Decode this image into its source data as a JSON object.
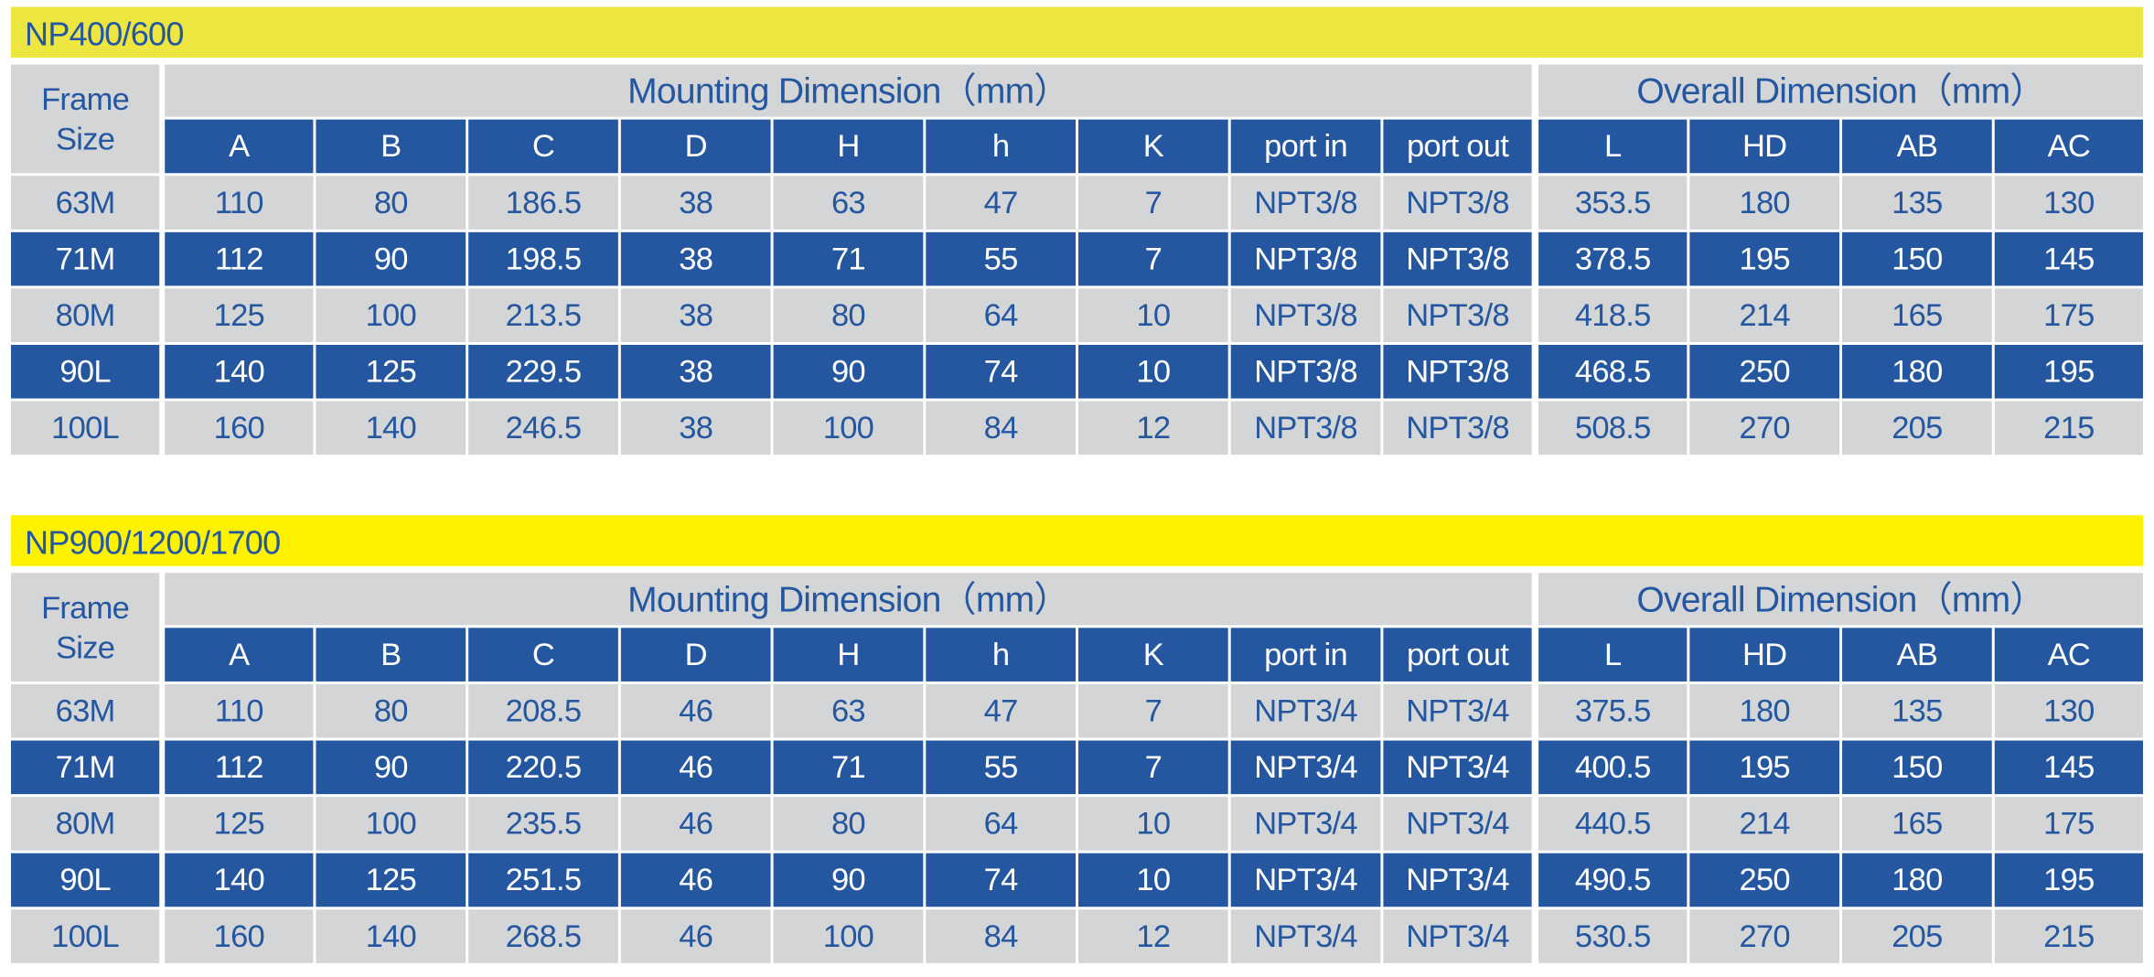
{
  "tables": [
    {
      "title": "NP400/600",
      "frame_header": "Frame Size",
      "groups": [
        "Mounting Dimension（mm）",
        "Overall Dimension（mm）"
      ],
      "columns": [
        "A",
        "B",
        "C",
        "D",
        "H",
        "h",
        "K",
        "port in",
        "port out",
        "L",
        "HD",
        "AB",
        "AC"
      ],
      "rows": [
        [
          "63M",
          110,
          80,
          186.5,
          38,
          63,
          47,
          7,
          "NPT3/8",
          "NPT3/8",
          353.5,
          180,
          135,
          130
        ],
        [
          "71M",
          112,
          90,
          198.5,
          38,
          71,
          55,
          7,
          "NPT3/8",
          "NPT3/8",
          378.5,
          195,
          150,
          145
        ],
        [
          "80M",
          125,
          100,
          213.5,
          38,
          80,
          64,
          10,
          "NPT3/8",
          "NPT3/8",
          418.5,
          214,
          165,
          175
        ],
        [
          "90L",
          140,
          125,
          229.5,
          38,
          90,
          74,
          10,
          "NPT3/8",
          "NPT3/8",
          468.5,
          250,
          180,
          195
        ],
        [
          "100L",
          160,
          140,
          246.5,
          38,
          100,
          84,
          12,
          "NPT3/8",
          "NPT3/8",
          508.5,
          270,
          205,
          215
        ]
      ]
    },
    {
      "title": "NP900/1200/1700",
      "frame_header": "Frame Size",
      "groups": [
        "Mounting Dimension（mm）",
        "Overall Dimension（mm）"
      ],
      "columns": [
        "A",
        "B",
        "C",
        "D",
        "H",
        "h",
        "K",
        "port in",
        "port out",
        "L",
        "HD",
        "AB",
        "AC"
      ],
      "rows": [
        [
          "63M",
          110,
          80,
          208.5,
          46,
          63,
          47,
          7,
          "NPT3/4",
          "NPT3/4",
          375.5,
          180,
          135,
          130
        ],
        [
          "71M",
          112,
          90,
          220.5,
          46,
          71,
          55,
          7,
          "NPT3/4",
          "NPT3/4",
          400.5,
          195,
          150,
          145
        ],
        [
          "80M",
          125,
          100,
          235.5,
          46,
          80,
          64,
          10,
          "NPT3/4",
          "NPT3/4",
          440.5,
          214,
          165,
          175
        ],
        [
          "90L",
          140,
          125,
          251.5,
          46,
          90,
          74,
          10,
          "NPT3/4",
          "NPT3/4",
          490.5,
          250,
          180,
          195
        ],
        [
          "100L",
          160,
          140,
          268.5,
          46,
          100,
          84,
          12,
          "NPT3/4",
          "NPT3/4",
          530.5,
          270,
          205,
          215
        ]
      ]
    }
  ]
}
